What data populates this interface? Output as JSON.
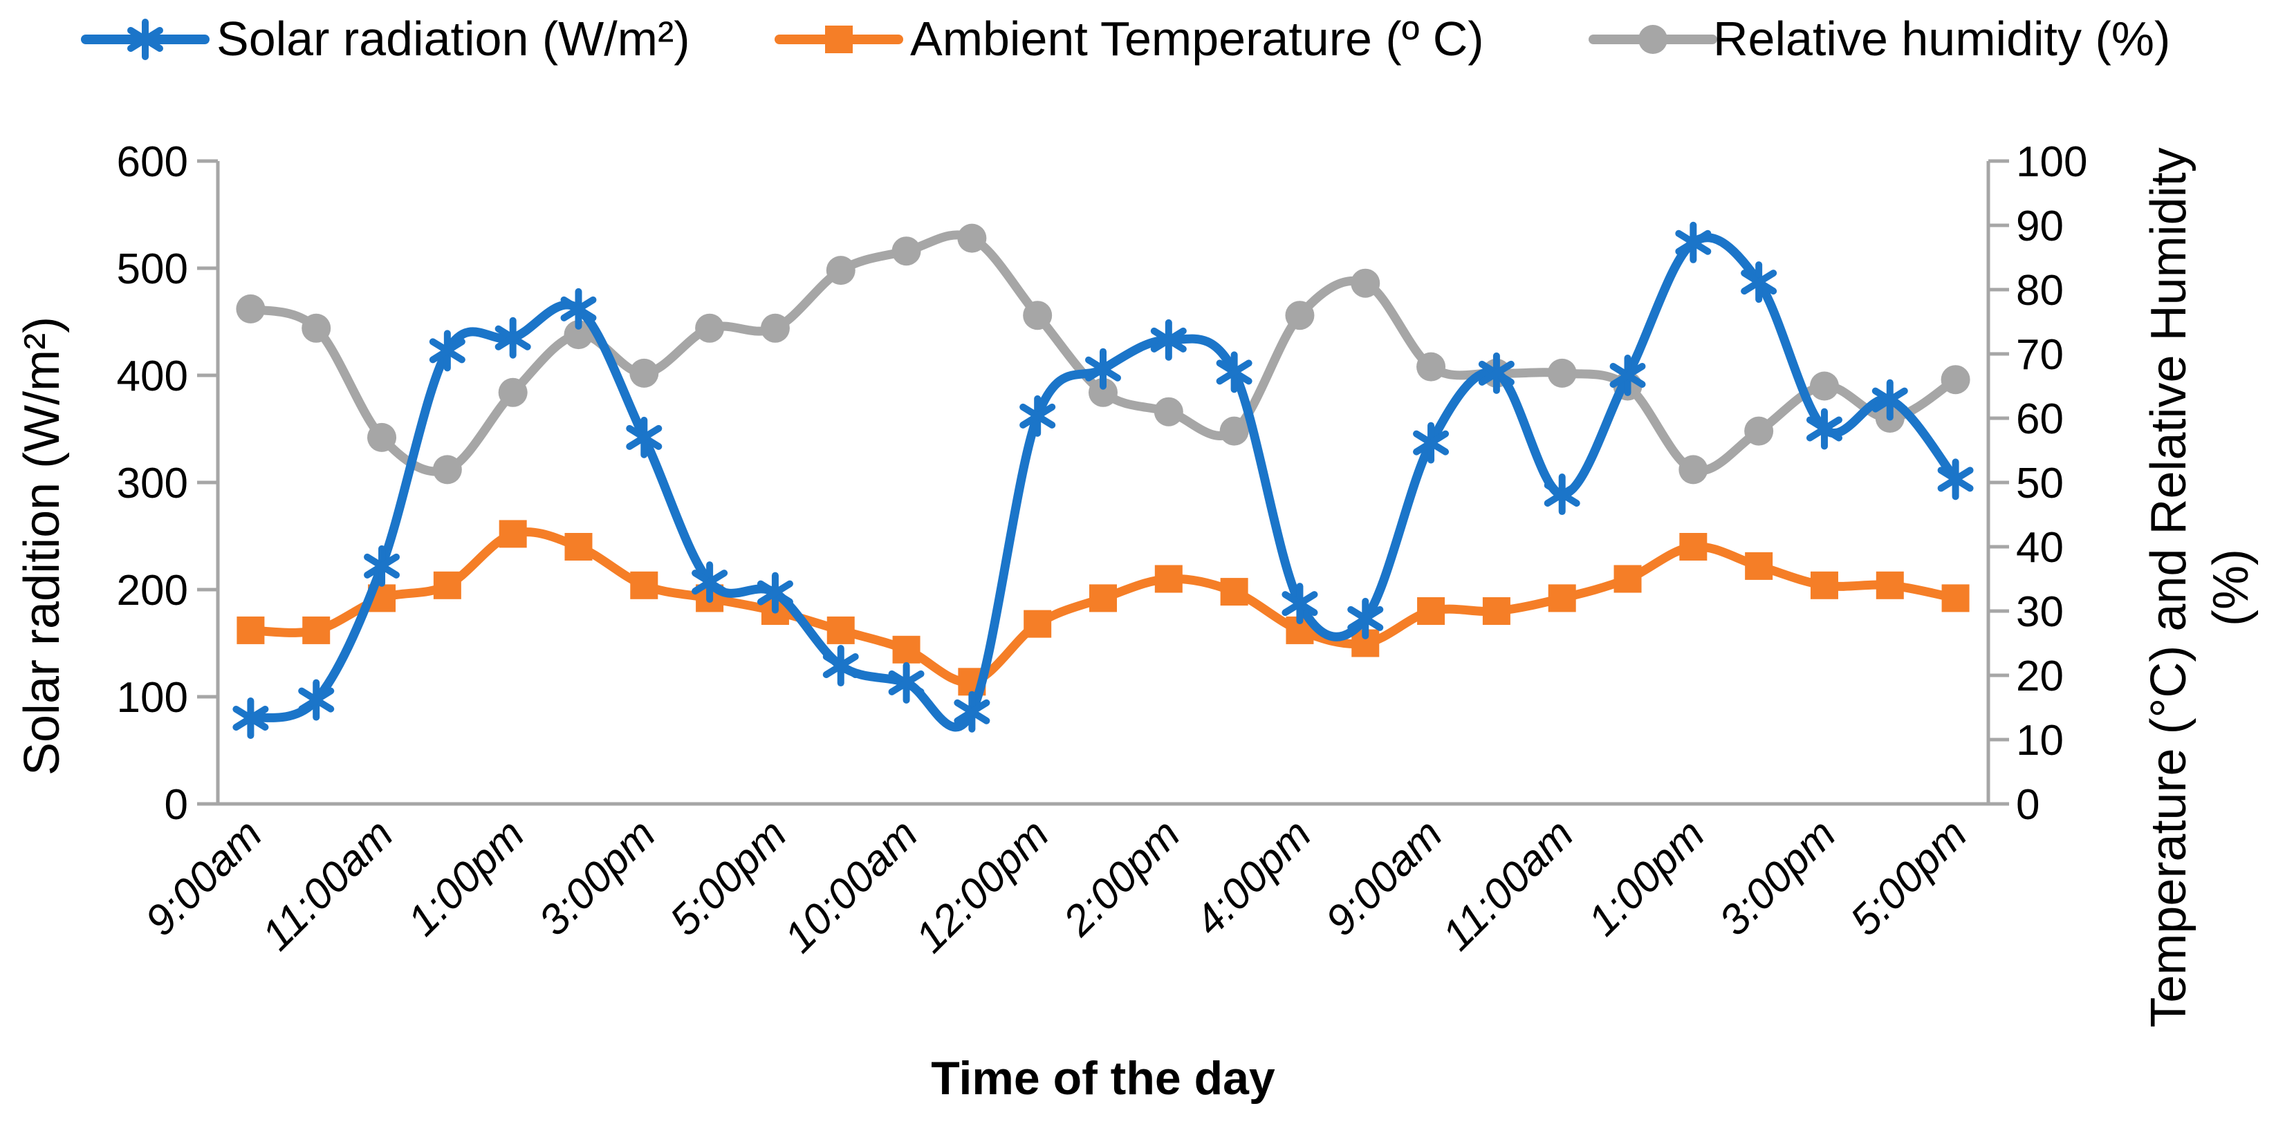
{
  "page": {
    "background": "#ffffff"
  },
  "chart_data": {
    "type": "line",
    "title": "",
    "xlabel": "Time of the day",
    "ylabel_left": "Solar radition (W/m²)",
    "ylabel_right": "Temperature (°C) and Relative Humidity (%)",
    "ylabel_right_line1": "Temperature (°C) and Relative Humidity",
    "ylabel_right_line2": "(%)",
    "grid": false,
    "legend_position": "top",
    "axis_color": "#A6A6A6",
    "text_color": "#000000",
    "y_left": {
      "min": 0,
      "max": 600,
      "step": 100,
      "tick_labels": [
        "0",
        "100",
        "200",
        "300",
        "400",
        "500",
        "600"
      ]
    },
    "y_right": {
      "min": 0,
      "max": 100,
      "step": 10,
      "tick_labels": [
        "0",
        "10",
        "20",
        "30",
        "40",
        "50",
        "60",
        "70",
        "80",
        "90",
        "100"
      ]
    },
    "categories": [
      "9:00am",
      "10:00am",
      "11:00am",
      "12:00pm",
      "1:00pm",
      "2:00pm",
      "3:00pm",
      "4:00pm",
      "5:00pm",
      "9:00am",
      "10:00am",
      "11:00am",
      "12:00pm",
      "1:00pm",
      "2:00pm",
      "3:00pm",
      "4:00pm",
      "5:00pm",
      "9:00am",
      "10:00am",
      "11:00am",
      "12:00pm",
      "1:00pm",
      "2:00pm",
      "3:00pm",
      "4:00pm",
      "5:00pm"
    ],
    "x_tick_labels": [
      {
        "index": 0,
        "label": "9:00am"
      },
      {
        "index": 2,
        "label": "11:00am"
      },
      {
        "index": 4,
        "label": "1:00pm"
      },
      {
        "index": 6,
        "label": "3:00pm"
      },
      {
        "index": 8,
        "label": "5:00pm"
      },
      {
        "index": 10,
        "label": "10:00am"
      },
      {
        "index": 12,
        "label": "12:00pm"
      },
      {
        "index": 14,
        "label": "2:00pm"
      },
      {
        "index": 16,
        "label": "4:00pm"
      },
      {
        "index": 18,
        "label": "9:00am"
      },
      {
        "index": 20,
        "label": "11:00am"
      },
      {
        "index": 22,
        "label": "1:00pm"
      },
      {
        "index": 24,
        "label": "3:00pm"
      },
      {
        "index": 26,
        "label": "5:00pm"
      }
    ],
    "series": [
      {
        "name": "Solar radiation (W/m²)",
        "axis": "left",
        "color": "#1B75C9",
        "marker": "asterisk",
        "values": [
          80,
          97,
          222,
          423,
          435,
          462,
          342,
          207,
          197,
          129,
          113,
          86,
          362,
          406,
          433,
          403,
          187,
          173,
          337,
          402,
          289,
          400,
          524,
          487,
          350,
          377,
          303
        ]
      },
      {
        "name": "Ambient Temperature (º C)",
        "axis": "right",
        "color": "#F57E27",
        "marker": "square",
        "values": [
          27,
          27,
          32,
          34,
          42,
          40,
          34,
          32,
          30,
          27,
          24,
          19,
          28,
          32,
          35,
          33,
          27,
          25,
          30,
          30,
          32,
          35,
          40,
          37,
          34,
          34,
          32
        ]
      },
      {
        "name": "Relative humidity (%)",
        "axis": "right",
        "color": "#A6A6A6",
        "marker": "circle",
        "values": [
          77,
          74,
          57,
          52,
          64,
          73,
          67,
          74,
          74,
          83,
          86,
          88,
          76,
          64,
          61,
          58,
          76,
          81,
          68,
          67,
          67,
          65,
          52,
          58,
          65,
          60,
          66
        ]
      }
    ]
  }
}
